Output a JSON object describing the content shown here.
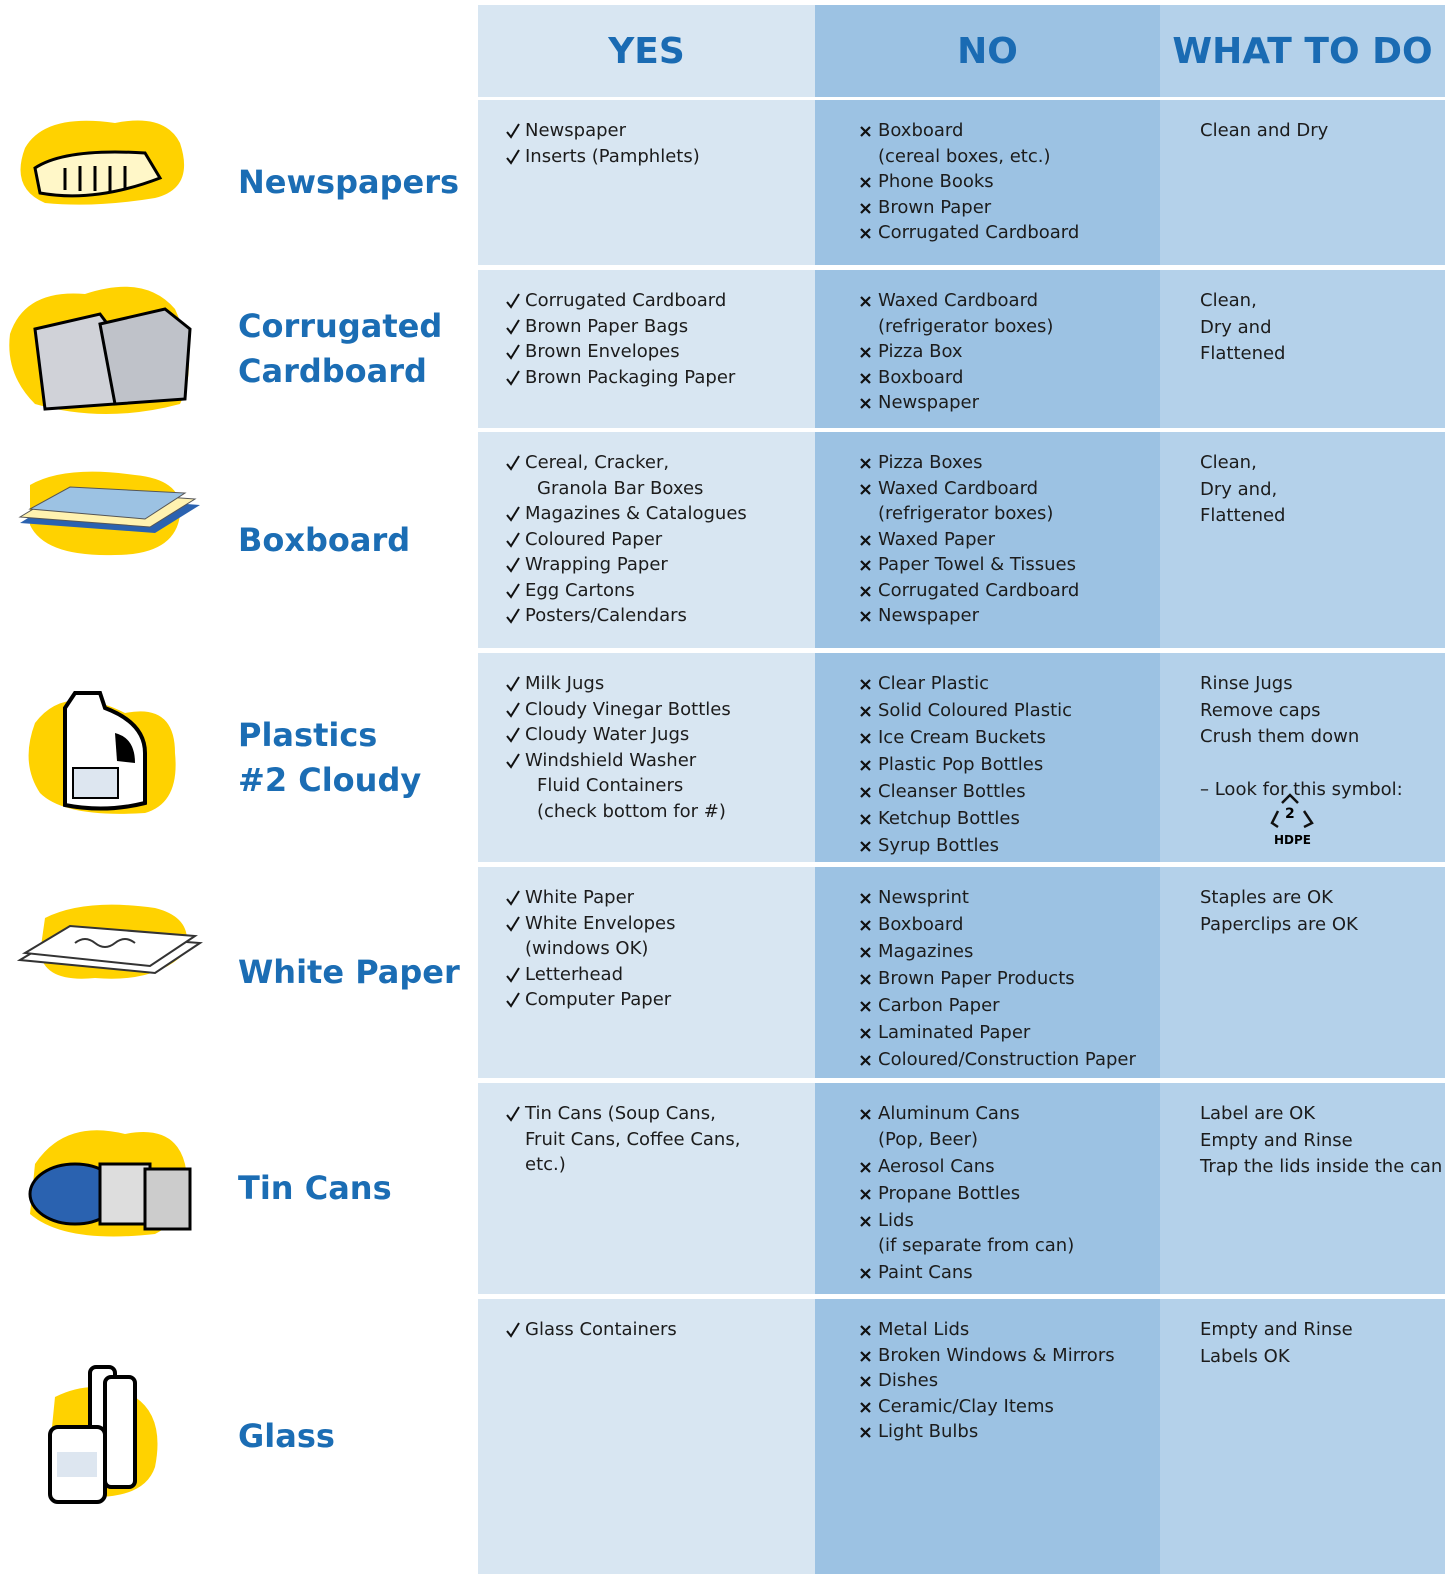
{
  "header": {
    "columns": [
      "YES",
      "NO",
      "WHAT TO DO"
    ]
  },
  "rows": [
    {
      "label": [
        "Newspapers"
      ],
      "yes": [
        [
          "Newspaper"
        ],
        [
          "Inserts (Pamphlets)"
        ]
      ],
      "no": [
        [
          "Boxboard",
          "(cereal boxes, etc.)"
        ],
        [
          "Phone Books"
        ],
        [
          "Brown Paper"
        ],
        [
          "Corrugated Cardboard"
        ]
      ],
      "todo": [
        "Clean and Dry"
      ]
    },
    {
      "label": [
        "Corrugated",
        "Cardboard"
      ],
      "yes": [
        [
          "Corrugated Cardboard"
        ],
        [
          "Brown Paper Bags"
        ],
        [
          "Brown Envelopes"
        ],
        [
          "Brown Packaging Paper"
        ]
      ],
      "no": [
        [
          "Waxed Cardboard",
          "(refrigerator boxes)"
        ],
        [
          "Pizza Box"
        ],
        [
          "Boxboard"
        ],
        [
          "Newspaper"
        ]
      ],
      "todo": [
        "Clean,",
        "Dry and",
        "Flattened"
      ]
    },
    {
      "label": [
        "Boxboard"
      ],
      "yes": [
        [
          "Cereal, Cracker,",
          "Granola Bar Boxes"
        ],
        [
          "Magazines & Catalogues"
        ],
        [
          "Coloured Paper"
        ],
        [
          "Wrapping Paper"
        ],
        [
          "Egg Cartons"
        ],
        [
          "Posters/Calendars"
        ]
      ],
      "no": [
        [
          "Pizza Boxes"
        ],
        [
          "Waxed Cardboard",
          "(refrigerator boxes)"
        ],
        [
          "Waxed Paper"
        ],
        [
          "Paper Towel & Tissues"
        ],
        [
          "Corrugated Cardboard"
        ],
        [
          "Newspaper"
        ]
      ],
      "todo": [
        "Clean,",
        "Dry and,",
        "Flattened"
      ]
    },
    {
      "label": [
        "Plastics",
        "#2 Cloudy"
      ],
      "yes": [
        [
          "Milk Jugs"
        ],
        [
          "Cloudy Vinegar Bottles"
        ],
        [
          "Cloudy Water Jugs"
        ],
        [
          "Windshield Washer",
          "Fluid Containers",
          "(check bottom for #)"
        ]
      ],
      "no": [
        [
          "Clear Plastic"
        ],
        [
          "Solid Coloured Plastic"
        ],
        [
          "Ice Cream Buckets"
        ],
        [
          "Plastic Pop Bottles"
        ],
        [
          "Cleanser Bottles"
        ],
        [
          "Ketchup Bottles"
        ],
        [
          "Syrup Bottles"
        ]
      ],
      "todo": [
        "Rinse Jugs",
        "Remove caps",
        "Crush them down",
        "",
        "– Look for this symbol:"
      ],
      "symbol": {
        "number": "2",
        "label": "HDPE"
      }
    },
    {
      "label": [
        "White Paper"
      ],
      "yes": [
        [
          "White Paper"
        ],
        [
          "White Envelopes",
          "(windows OK)"
        ],
        [
          "Letterhead"
        ],
        [
          "Computer Paper"
        ]
      ],
      "no": [
        [
          "Newsprint"
        ],
        [
          "Boxboard"
        ],
        [
          "Magazines"
        ],
        [
          "Brown Paper Products"
        ],
        [
          "Carbon Paper"
        ],
        [
          "Laminated Paper"
        ],
        [
          "Coloured/Construction Paper"
        ]
      ],
      "todo": [
        "Staples are OK",
        "Paperclips are OK"
      ]
    },
    {
      "label": [
        "Tin Cans"
      ],
      "yes": [
        [
          "Tin Cans (Soup Cans,",
          "Fruit Cans, Coffee Cans,",
          "etc.)"
        ]
      ],
      "no": [
        [
          "Aluminum Cans",
          "(Pop, Beer)"
        ],
        [
          "Aerosol Cans"
        ],
        [
          "Propane Bottles"
        ],
        [
          "Lids",
          "(if separate from can)"
        ],
        [
          "Paint Cans"
        ]
      ],
      "todo": [
        "Label are OK",
        "Empty and Rinse",
        "Trap the lids inside the can"
      ]
    },
    {
      "label": [
        "Glass"
      ],
      "yes": [
        [
          "Glass Containers"
        ]
      ],
      "no": [
        [
          "Metal Lids"
        ],
        [
          "Broken Windows & Mirrors"
        ],
        [
          "Dishes"
        ],
        [
          "Ceramic/Clay Items"
        ],
        [
          "Light Bulbs"
        ]
      ],
      "todo": [
        "Empty and Rinse",
        "Labels OK"
      ]
    }
  ]
}
